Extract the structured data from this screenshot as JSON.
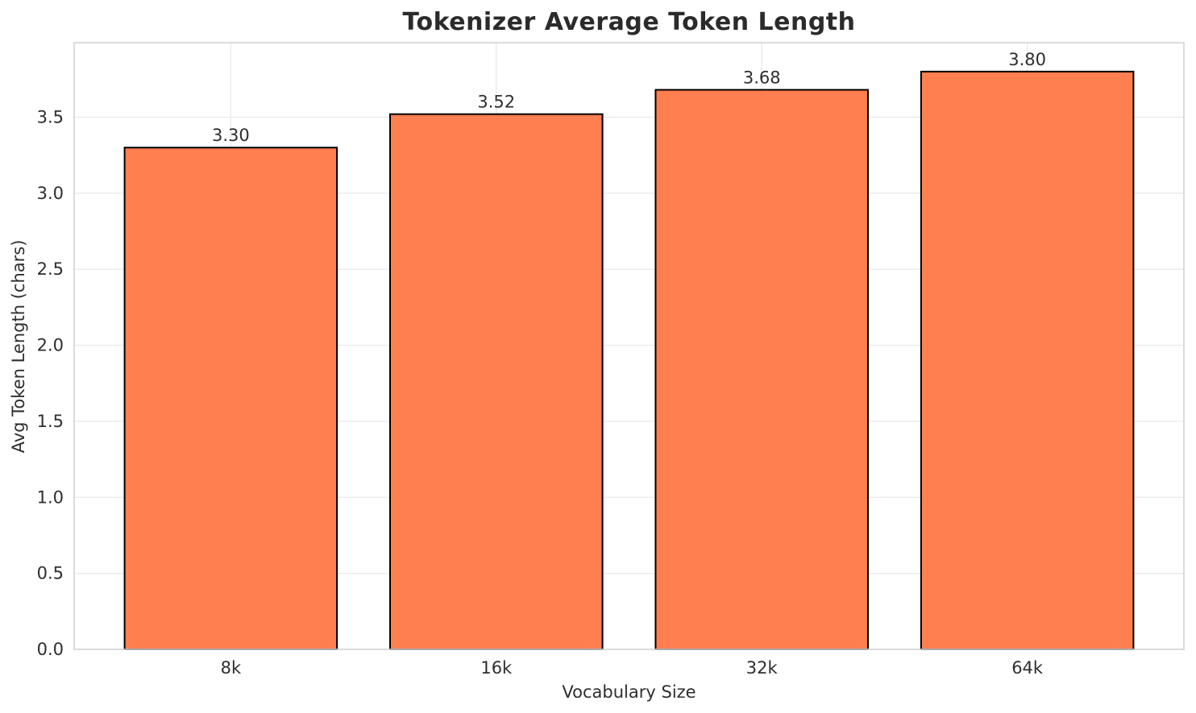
{
  "chart_data": {
    "type": "bar",
    "title": "Tokenizer Average Token Length",
    "xlabel": "Vocabulary Size",
    "ylabel": "Avg Token Length (chars)",
    "categories": [
      "8k",
      "16k",
      "32k",
      "64k"
    ],
    "values": [
      3.3,
      3.52,
      3.68,
      3.8
    ],
    "bar_labels": [
      "3.30",
      "3.52",
      "3.68",
      "3.80"
    ],
    "yticks": [
      0.0,
      0.5,
      1.0,
      1.5,
      2.0,
      2.5,
      3.0,
      3.5
    ],
    "ytick_labels": [
      "0.0",
      "0.5",
      "1.0",
      "1.5",
      "2.0",
      "2.5",
      "3.0",
      "3.5"
    ],
    "ylim": [
      0,
      3.99
    ],
    "xlim": [
      -0.59,
      3.59
    ],
    "bar_width": 0.8,
    "grid": true,
    "legend": "none",
    "colors": {
      "bar_fill": "#FF7F50",
      "bar_edge": "#000000",
      "grid": "#EAEAEA",
      "spine": "#D4D4D4",
      "title": "#2B2B2B",
      "text": "#2E2E2E",
      "background": "#FFFFFF"
    }
  }
}
